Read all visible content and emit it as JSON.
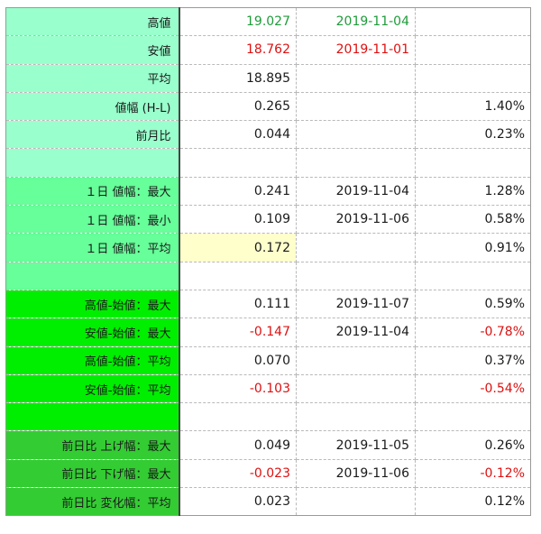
{
  "rows": [
    {
      "label": "高値",
      "v1": "19.027",
      "v2": "2019-11-04",
      "v3": ""
    },
    {
      "label": "安値",
      "v1": "18.762",
      "v2": "2019-11-01",
      "v3": ""
    },
    {
      "label": "平均",
      "v1": "18.895",
      "v2": "",
      "v3": ""
    },
    {
      "label": "値幅 (H-L)",
      "v1": "0.265",
      "v2": "",
      "v3": "1.40%"
    },
    {
      "label": "前月比",
      "v1": "0.044",
      "v2": "",
      "v3": "0.23%"
    },
    {
      "label": "",
      "v1": "",
      "v2": "",
      "v3": ""
    },
    {
      "label": "１日 値幅：最大",
      "v1": "0.241",
      "v2": "2019-11-04",
      "v3": "1.28%"
    },
    {
      "label": "１日 値幅：最小",
      "v1": "0.109",
      "v2": "2019-11-06",
      "v3": "0.58%"
    },
    {
      "label": "１日 値幅：平均",
      "v1": "0.172",
      "v2": "",
      "v3": "0.91%"
    },
    {
      "label": "",
      "v1": "",
      "v2": "",
      "v3": ""
    },
    {
      "label": "高値-始値：最大",
      "v1": "0.111",
      "v2": "2019-11-07",
      "v3": "0.59%"
    },
    {
      "label": "安値-始値：最大",
      "v1": "-0.147",
      "v2": "2019-11-04",
      "v3": "-0.78%"
    },
    {
      "label": "高値-始値：平均",
      "v1": "0.070",
      "v2": "",
      "v3": "0.37%"
    },
    {
      "label": "安値-始値：平均",
      "v1": "-0.103",
      "v2": "",
      "v3": "-0.54%"
    },
    {
      "label": "",
      "v1": "",
      "v2": "",
      "v3": ""
    },
    {
      "label": "前日比 上げ幅：最大",
      "v1": "0.049",
      "v2": "2019-11-05",
      "v3": "0.26%"
    },
    {
      "label": "前日比 下げ幅：最大",
      "v1": "-0.023",
      "v2": "2019-11-06",
      "v3": "-0.12%"
    },
    {
      "label": "前日比 変化幅：平均",
      "v1": "0.023",
      "v2": "",
      "v3": "0.12%"
    }
  ],
  "colors": {
    "group1": "#99ffcc",
    "group2": "#66ff99",
    "group3": "#00ee00",
    "group4": "#33cc33",
    "positive_high": "#1f9b3a",
    "negative": "#dd1111",
    "highlight": "#ffffcc"
  }
}
